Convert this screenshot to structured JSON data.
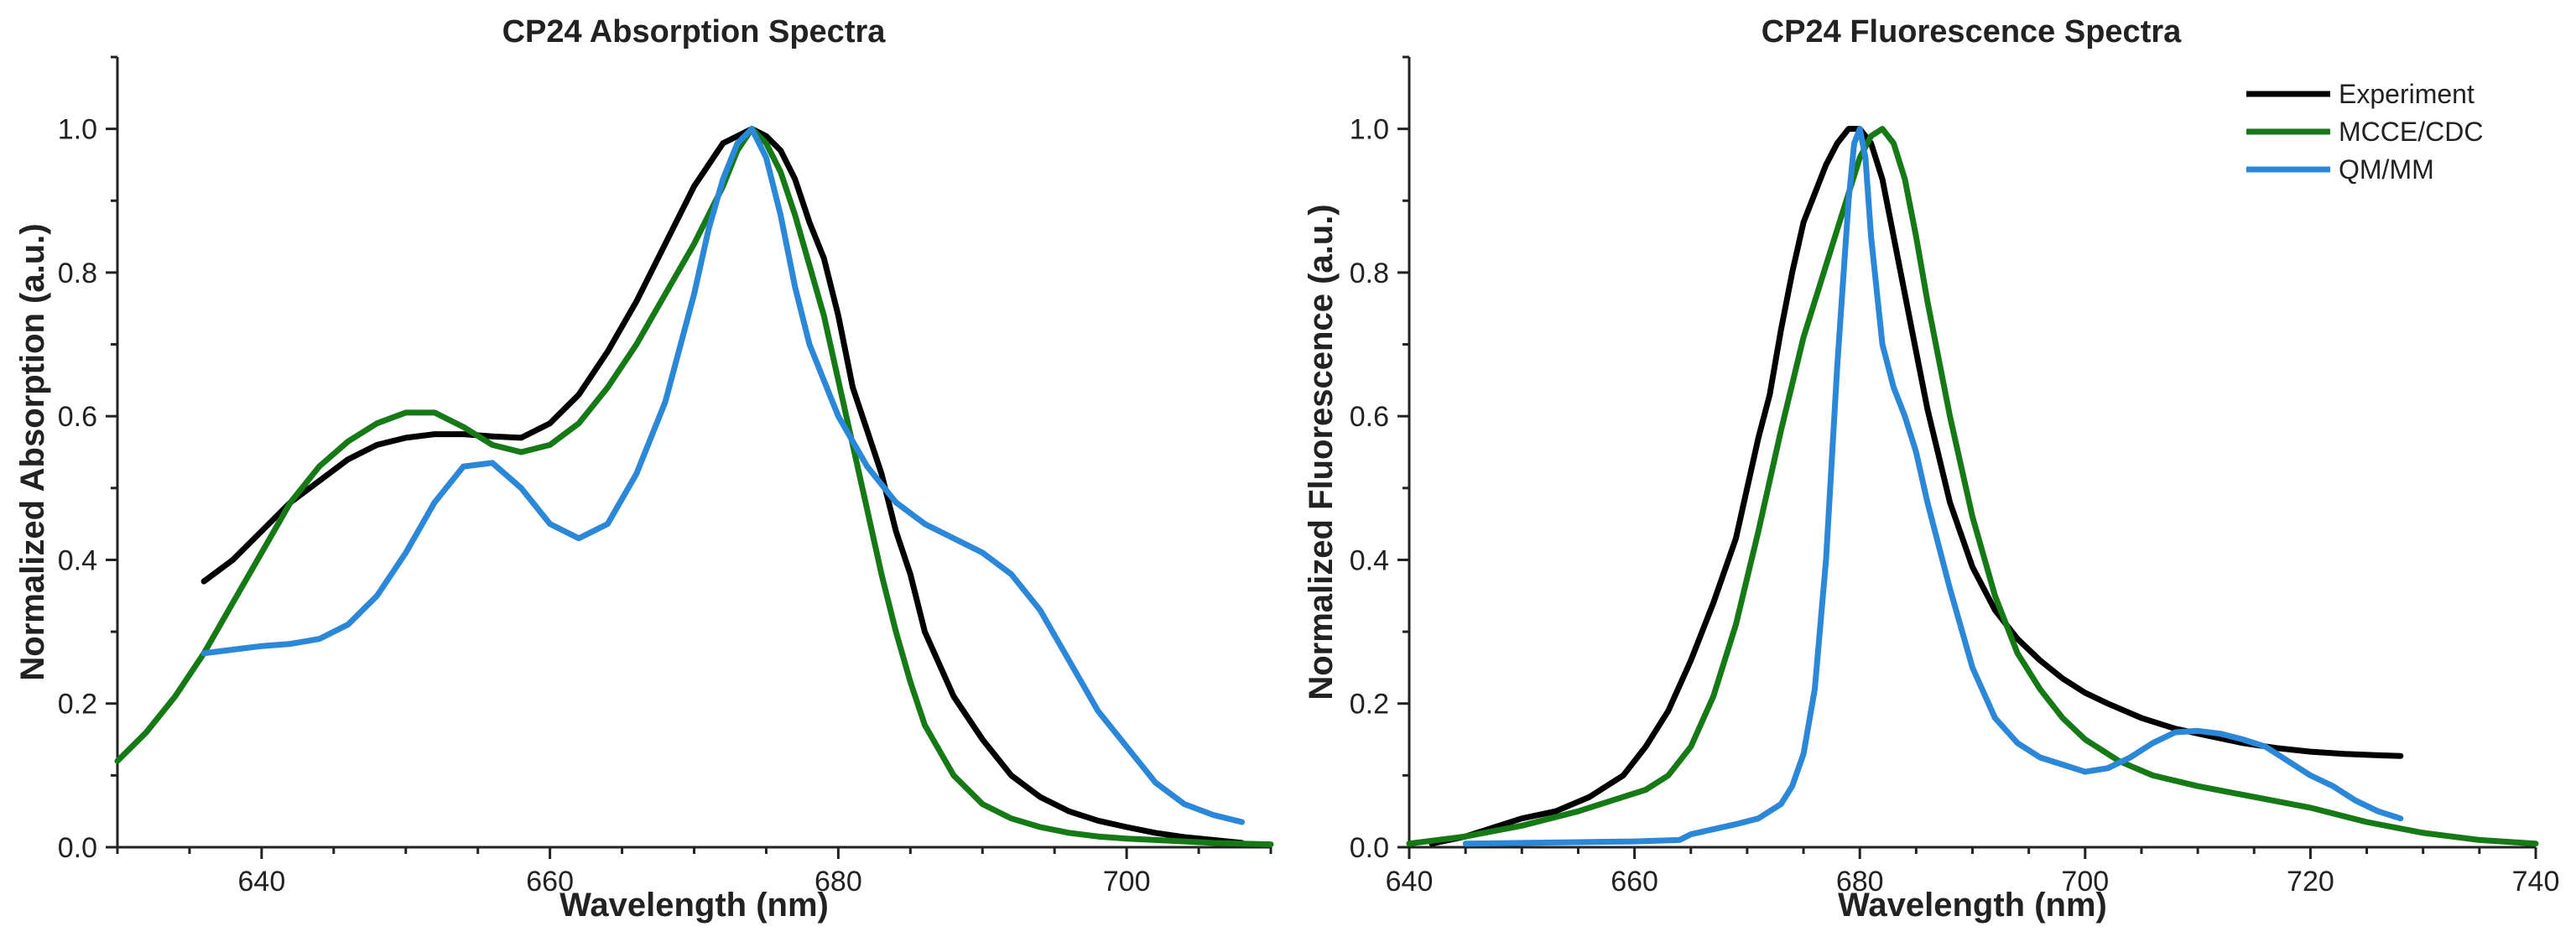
{
  "colors": {
    "Experiment": "#000000",
    "MCCE/CDC": "#157a15",
    "QM/MM": "#2b87d8"
  },
  "chart_data": [
    {
      "type": "line",
      "title": "CP24 Absorption Spectra",
      "xlabel": "Wavelength (nm)",
      "ylabel": "Normalized Absorption (a.u.)",
      "xlim": [
        630,
        710
      ],
      "ylim": [
        0,
        1.1
      ],
      "xticks": [
        640,
        660,
        680,
        700
      ],
      "xtick_labels": [
        "640",
        "660",
        "680",
        "700"
      ],
      "xminor": 5,
      "yticks": [
        0,
        0.2,
        0.4,
        0.6,
        0.8,
        1.0
      ],
      "ytick_labels": [
        "0.0",
        "0.2",
        "0.4",
        "0.6",
        "0.8",
        "1.0"
      ],
      "yminor": 0.1,
      "grid": false,
      "legend": "none",
      "series": [
        {
          "name": "Experiment",
          "x": [
            636,
            638,
            640,
            642,
            644,
            646,
            648,
            650,
            652,
            654,
            656,
            658,
            660,
            662,
            664,
            666,
            668,
            669,
            670,
            671,
            672,
            673,
            674,
            675,
            676,
            677,
            678,
            679,
            680,
            681,
            682,
            683,
            684,
            685,
            686,
            688,
            690,
            692,
            694,
            696,
            698,
            700,
            702,
            704,
            706,
            708
          ],
          "y": [
            0.37,
            0.4,
            0.44,
            0.48,
            0.51,
            0.54,
            0.56,
            0.57,
            0.575,
            0.575,
            0.572,
            0.57,
            0.59,
            0.63,
            0.69,
            0.76,
            0.84,
            0.88,
            0.92,
            0.95,
            0.98,
            0.99,
            1.0,
            0.99,
            0.97,
            0.93,
            0.87,
            0.82,
            0.74,
            0.64,
            0.58,
            0.52,
            0.44,
            0.38,
            0.3,
            0.21,
            0.15,
            0.1,
            0.07,
            0.05,
            0.037,
            0.028,
            0.02,
            0.014,
            0.01,
            0.006
          ]
        },
        {
          "name": "MCCE/CDC",
          "x": [
            630,
            632,
            634,
            636,
            638,
            640,
            642,
            644,
            646,
            648,
            650,
            652,
            654,
            656,
            658,
            660,
            662,
            664,
            666,
            668,
            670,
            672,
            673,
            674,
            675,
            676,
            677,
            678,
            679,
            680,
            681,
            682,
            683,
            684,
            685,
            686,
            688,
            690,
            692,
            694,
            696,
            698,
            700,
            702,
            704,
            706,
            710
          ],
          "y": [
            0.12,
            0.16,
            0.21,
            0.27,
            0.34,
            0.41,
            0.48,
            0.53,
            0.565,
            0.59,
            0.605,
            0.605,
            0.585,
            0.56,
            0.55,
            0.56,
            0.59,
            0.64,
            0.7,
            0.77,
            0.84,
            0.92,
            0.97,
            1.0,
            0.98,
            0.94,
            0.88,
            0.81,
            0.74,
            0.65,
            0.56,
            0.47,
            0.38,
            0.3,
            0.23,
            0.17,
            0.1,
            0.06,
            0.04,
            0.028,
            0.02,
            0.015,
            0.012,
            0.01,
            0.008,
            0.006,
            0.004
          ]
        },
        {
          "name": "QM/MM",
          "x": [
            636,
            638,
            640,
            642,
            644,
            646,
            648,
            650,
            652,
            654,
            656,
            658,
            660,
            662,
            664,
            666,
            668,
            670,
            671,
            672,
            673,
            674,
            675,
            676,
            677,
            678,
            679,
            680,
            682,
            684,
            686,
            688,
            690,
            692,
            694,
            696,
            698,
            700,
            702,
            704,
            706,
            708
          ],
          "y": [
            0.27,
            0.275,
            0.28,
            0.283,
            0.29,
            0.31,
            0.35,
            0.41,
            0.48,
            0.53,
            0.535,
            0.5,
            0.45,
            0.43,
            0.45,
            0.52,
            0.62,
            0.77,
            0.86,
            0.93,
            0.98,
            1.0,
            0.96,
            0.88,
            0.78,
            0.7,
            0.65,
            0.6,
            0.53,
            0.48,
            0.45,
            0.43,
            0.41,
            0.38,
            0.33,
            0.26,
            0.19,
            0.14,
            0.09,
            0.06,
            0.045,
            0.035
          ]
        }
      ]
    },
    {
      "type": "line",
      "title": "CP24 Fluorescence Spectra",
      "xlabel": "Wavelength (nm)",
      "ylabel": "Normalized Fluorescence (a.u.)",
      "xlim": [
        640,
        740
      ],
      "ylim": [
        0,
        1.1
      ],
      "xticks": [
        640,
        660,
        680,
        700,
        720,
        740
      ],
      "xtick_labels": [
        "640",
        "660",
        "680",
        "700",
        "720",
        "740"
      ],
      "xminor": 5,
      "yticks": [
        0,
        0.2,
        0.4,
        0.6,
        0.8,
        1.0
      ],
      "ytick_labels": [
        "0.0",
        "0.2",
        "0.4",
        "0.6",
        "0.8",
        "1.0"
      ],
      "yminor": 0.1,
      "grid": false,
      "legend": "top-right",
      "series": [
        {
          "name": "Experiment",
          "x": [
            642,
            645,
            648,
            650,
            653,
            656,
            659,
            661,
            663,
            665,
            667,
            669,
            670,
            671,
            672,
            673,
            674,
            675,
            676,
            677,
            678,
            679,
            680,
            681,
            682,
            683,
            684,
            685,
            686,
            688,
            690,
            692,
            694,
            696,
            698,
            700,
            702,
            705,
            708,
            711,
            714,
            717,
            720,
            723,
            726,
            728
          ],
          "y": [
            0.005,
            0.015,
            0.03,
            0.04,
            0.05,
            0.07,
            0.1,
            0.14,
            0.19,
            0.26,
            0.34,
            0.43,
            0.5,
            0.57,
            0.63,
            0.72,
            0.8,
            0.87,
            0.91,
            0.95,
            0.98,
            1.0,
            1.0,
            0.98,
            0.93,
            0.85,
            0.77,
            0.69,
            0.61,
            0.48,
            0.39,
            0.33,
            0.29,
            0.26,
            0.235,
            0.215,
            0.2,
            0.18,
            0.165,
            0.155,
            0.145,
            0.138,
            0.133,
            0.13,
            0.128,
            0.127
          ]
        },
        {
          "name": "MCCE/CDC",
          "x": [
            640,
            645,
            650,
            655,
            658,
            661,
            663,
            665,
            667,
            669,
            671,
            673,
            675,
            677,
            678,
            679,
            680,
            681,
            682,
            683,
            684,
            685,
            686,
            688,
            690,
            692,
            694,
            696,
            698,
            700,
            703,
            706,
            710,
            715,
            720,
            725,
            730,
            735,
            740
          ],
          "y": [
            0.005,
            0.015,
            0.03,
            0.05,
            0.065,
            0.08,
            0.1,
            0.14,
            0.21,
            0.31,
            0.44,
            0.58,
            0.71,
            0.81,
            0.86,
            0.91,
            0.96,
            0.99,
            1.0,
            0.98,
            0.93,
            0.85,
            0.76,
            0.6,
            0.46,
            0.35,
            0.27,
            0.22,
            0.18,
            0.15,
            0.12,
            0.1,
            0.085,
            0.07,
            0.055,
            0.035,
            0.02,
            0.01,
            0.005
          ]
        },
        {
          "name": "QM/MM",
          "x": [
            645,
            650,
            655,
            660,
            664,
            665,
            667,
            669,
            671,
            673,
            674,
            675,
            676,
            677,
            678,
            679,
            679.5,
            680,
            680.5,
            681,
            682,
            683,
            684,
            685,
            686,
            688,
            690,
            692,
            694,
            696,
            698,
            700,
            702,
            704,
            706,
            708,
            710,
            712,
            714,
            716,
            718,
            720,
            722,
            724,
            726,
            728
          ],
          "y": [
            0.005,
            0.006,
            0.007,
            0.008,
            0.01,
            0.018,
            0.025,
            0.032,
            0.04,
            0.06,
            0.085,
            0.13,
            0.22,
            0.4,
            0.67,
            0.9,
            0.98,
            1.0,
            0.96,
            0.85,
            0.7,
            0.64,
            0.6,
            0.55,
            0.48,
            0.36,
            0.25,
            0.18,
            0.145,
            0.125,
            0.115,
            0.105,
            0.11,
            0.125,
            0.145,
            0.16,
            0.162,
            0.158,
            0.15,
            0.14,
            0.12,
            0.1,
            0.085,
            0.065,
            0.05,
            0.04
          ]
        }
      ]
    }
  ]
}
